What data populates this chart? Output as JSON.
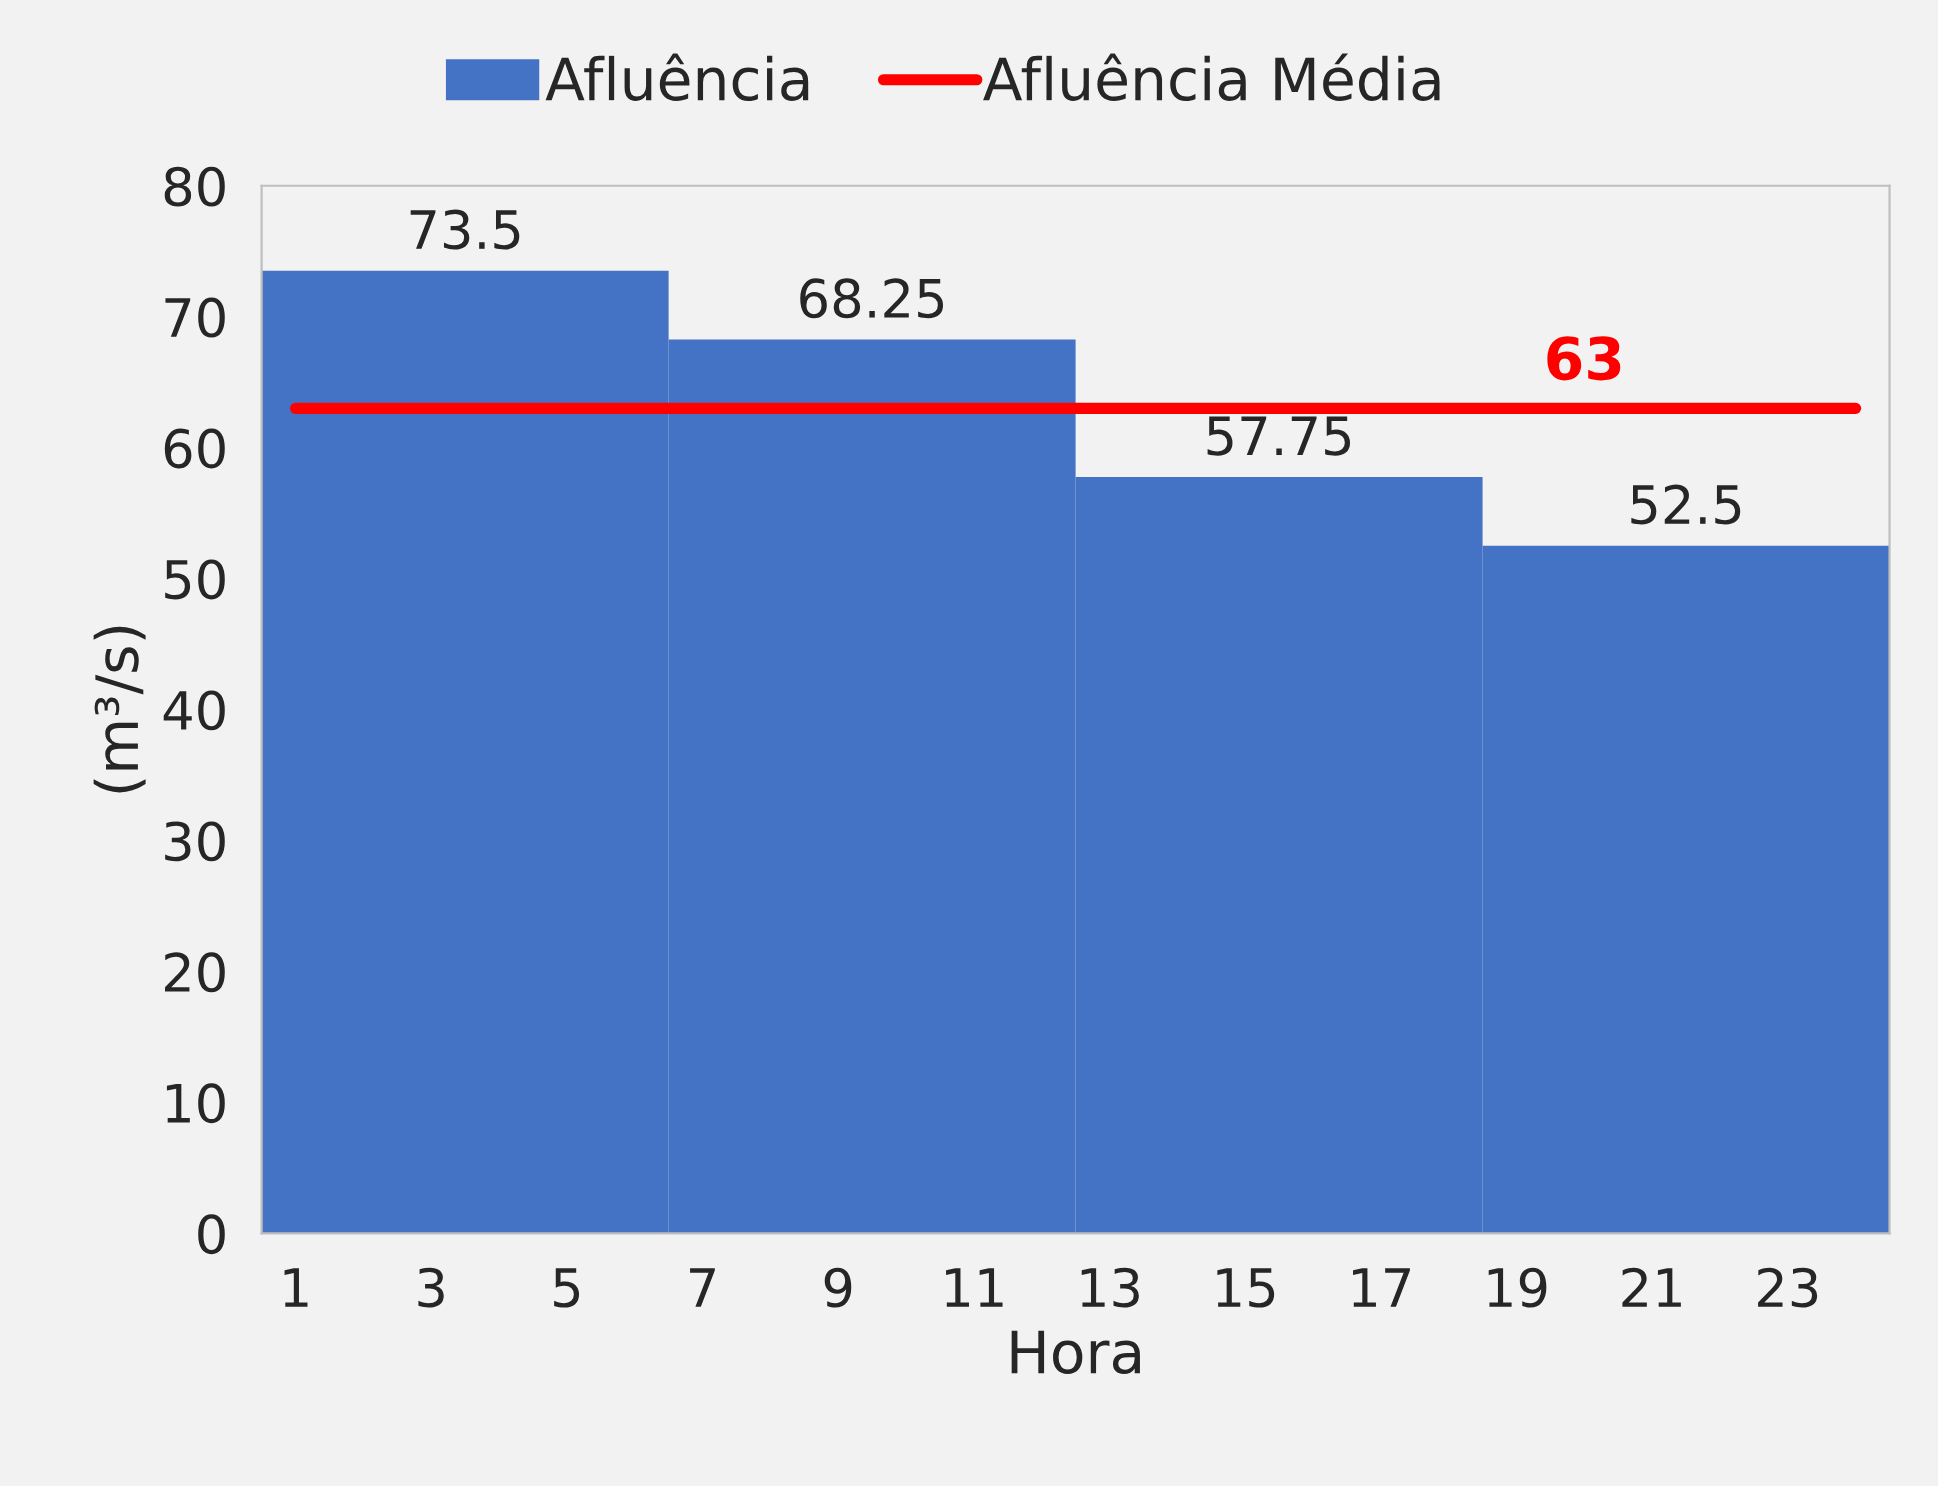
{
  "chart_data": {
    "type": "bar",
    "xlabel": "Hora",
    "ylabel": "(m³/s)",
    "x": [
      3.5,
      9.5,
      15.5,
      21.5
    ],
    "series": [
      {
        "name": "Afluência",
        "color": "#4472c4",
        "values": [
          73.5,
          68.25,
          57.75,
          52.5
        ],
        "value_labels": [
          "73.5",
          "68.25",
          "57.75",
          "52.5"
        ]
      },
      {
        "name": "Afluência Média",
        "type": "line",
        "color": "#ff0000",
        "x": [
          1,
          20,
          24
        ],
        "values": [
          63,
          63,
          63
        ],
        "value_labels": [
          null,
          "63",
          null
        ]
      }
    ],
    "xlim": [
      0.5,
      24.5
    ],
    "xticks": [
      1,
      3,
      5,
      7,
      9,
      11,
      13,
      15,
      17,
      19,
      21,
      23
    ],
    "ylim": [
      0,
      80
    ],
    "yticks": [
      0,
      10,
      20,
      30,
      40,
      50,
      60,
      70,
      80
    ],
    "grid": false,
    "legend": "top",
    "marker": "none",
    "line_style": "solid"
  }
}
